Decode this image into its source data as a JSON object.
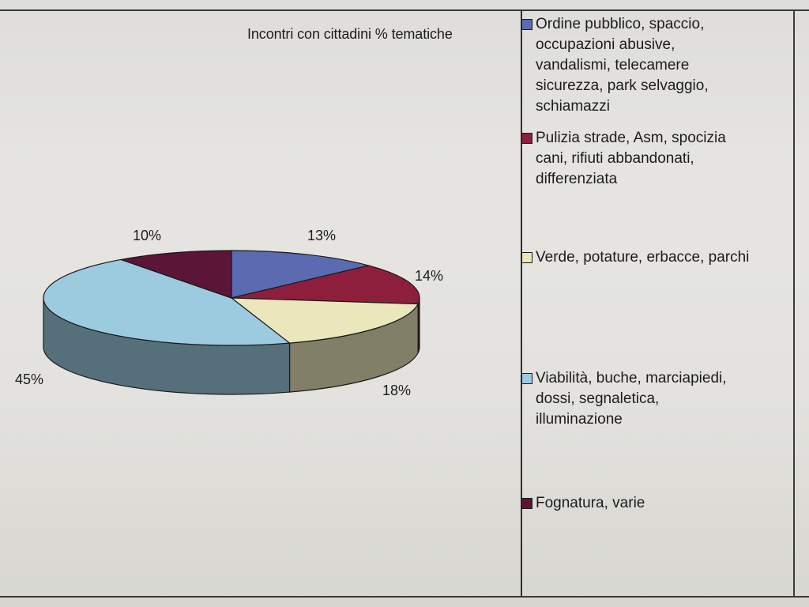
{
  "chart_data": {
    "type": "pie",
    "title": "Incontri con cittadini % tematiche",
    "legend_position": "right",
    "slices": [
      {
        "name": "Ordine pubblico, spaccio, occupazioni abusive, vandalismi, telecamere sicurezza, park selvaggio, schiamazzi",
        "legend_lines": "Ordine pubblico, spaccio,\noccupazioni abusive,\nvandalismi, telecamere\nsicurezza, park selvaggio,\nschiamazzi",
        "value": 13,
        "label": "13%",
        "color": "#5a6bb2"
      },
      {
        "name": "Pulizia strade, Asm, spocizia cani, rifiuti abbandonati, differenziata",
        "legend_lines": "Pulizia strade, Asm, spocizia\ncani, rifiuti abbandonati,\ndifferenziata",
        "value": 14,
        "label": "14%",
        "color": "#8e1f3c"
      },
      {
        "name": "Verde, potature, erbacce, parchi",
        "legend_lines": "Verde, potature, erbacce, parchi",
        "value": 18,
        "label": "18%",
        "color": "#ebe6bc"
      },
      {
        "name": "Viabilità, buche, marciapiedi, dossi, segnaletica, illuminazione",
        "legend_lines": "Viabilità, buche, marciapiedi,\ndossi, segnaletica,\nilluminazione",
        "value": 45,
        "label": "45%",
        "color": "#9ccbdf"
      },
      {
        "name": "Fognatura, varie",
        "legend_lines": "Fognatura, varie",
        "value": 10,
        "label": "10%",
        "color": "#5b1536"
      }
    ]
  }
}
